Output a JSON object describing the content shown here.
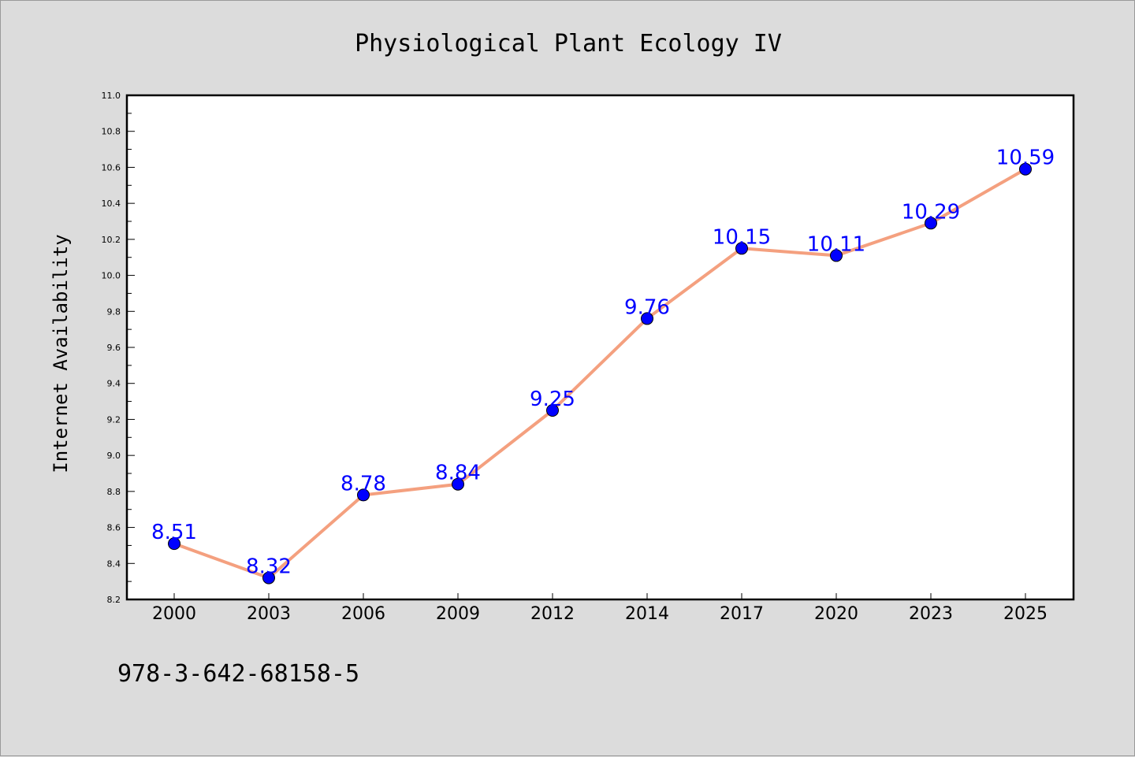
{
  "chart_data": {
    "type": "line",
    "title": "Physiological Plant Ecology IV",
    "xlabel": "",
    "ylabel": "Internet Availability",
    "categories": [
      "2000",
      "2003",
      "2006",
      "2009",
      "2012",
      "2014",
      "2017",
      "2020",
      "2023",
      "2025"
    ],
    "series": [
      {
        "values": [
          8.51,
          8.32,
          8.78,
          8.84,
          9.25,
          9.76,
          10.15,
          10.11,
          10.29,
          10.59
        ]
      }
    ],
    "value_labels": [
      "8.51",
      "8.32",
      "8.78",
      "8.84",
      "9.25",
      "9.76",
      "10.15",
      "10.11",
      "10.29",
      "10.59"
    ],
    "ylim": [
      8.2,
      11.0
    ],
    "yticks": [
      "8.2",
      "8.4",
      "8.6",
      "8.8",
      "9.0",
      "9.2",
      "9.4",
      "9.6",
      "9.8",
      "10.0",
      "10.2",
      "10.4",
      "10.6",
      "10.8",
      "11.0"
    ],
    "grid": false,
    "legend": "none",
    "colors": {
      "line": "#f4a07f",
      "marker": "#0000ff",
      "data_label": "#0000ff",
      "background": "#dcdcdc",
      "plot_background": "#ffffff"
    }
  },
  "footer": {
    "isbn": "978-3-642-68158-5"
  }
}
